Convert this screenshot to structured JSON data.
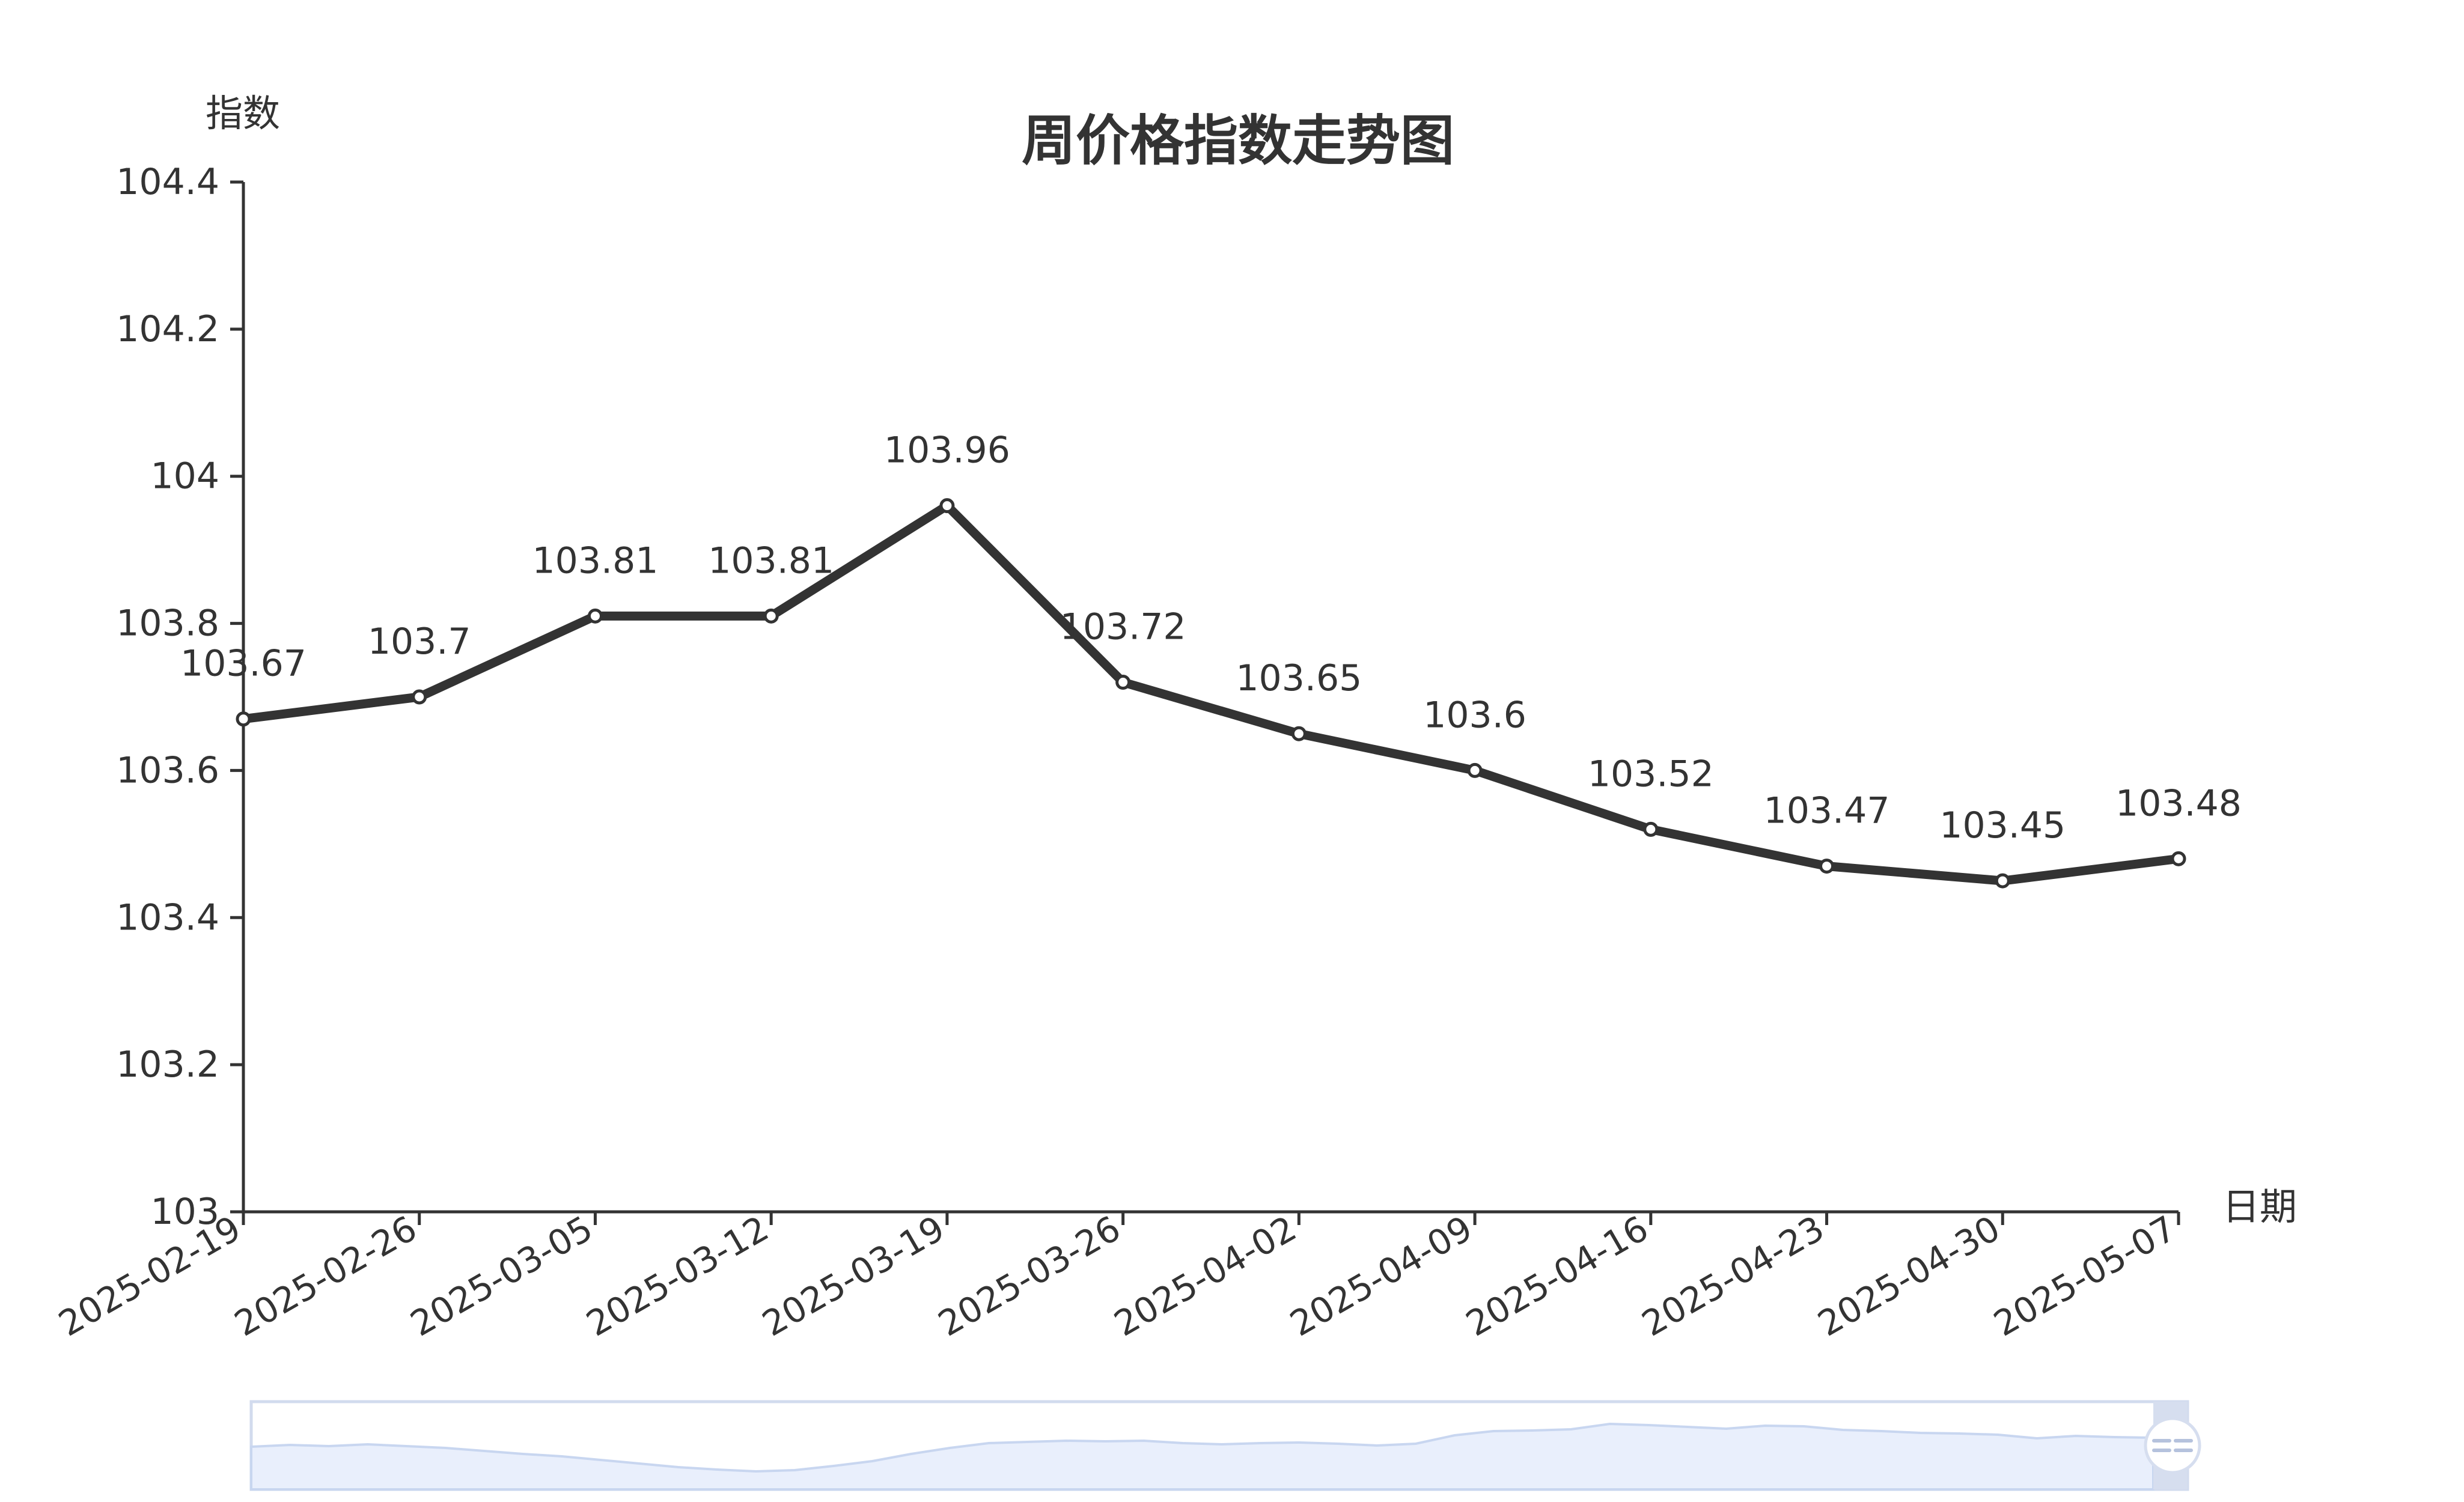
{
  "chart_data": {
    "type": "line",
    "title": "周价格指数走势图",
    "xlabel": "日期",
    "ylabel": "指数",
    "ylim": [
      103,
      104.4
    ],
    "y_ticks": [
      "103",
      "103.2",
      "103.4",
      "103.6",
      "103.8",
      "104",
      "104.2",
      "104.4"
    ],
    "categories": [
      "2025-02-19",
      "2025-02-26",
      "2025-03-05",
      "2025-03-12",
      "2025-03-19",
      "2025-03-26",
      "2025-04-02",
      "2025-04-09",
      "2025-04-16",
      "2025-04-23",
      "2025-04-30",
      "2025-05-07"
    ],
    "series": [
      {
        "values": [
          103.67,
          103.7,
          103.81,
          103.81,
          103.96,
          103.72,
          103.65,
          103.6,
          103.52,
          103.47,
          103.45,
          103.48
        ],
        "labels": [
          "103.67",
          "103.7",
          "103.81",
          "103.81",
          "103.96",
          "103.72",
          "103.65",
          "103.6",
          "103.52",
          "103.47",
          "103.45",
          "103.48"
        ]
      }
    ],
    "grid": false,
    "line_color": "#333333",
    "point_fill": "#ffffff",
    "slider": {
      "border_color": "#d2dbee",
      "fill_color": "#e9effc",
      "shade_stroke": "#c8d6f0",
      "handle_color": "#d6deef"
    }
  }
}
